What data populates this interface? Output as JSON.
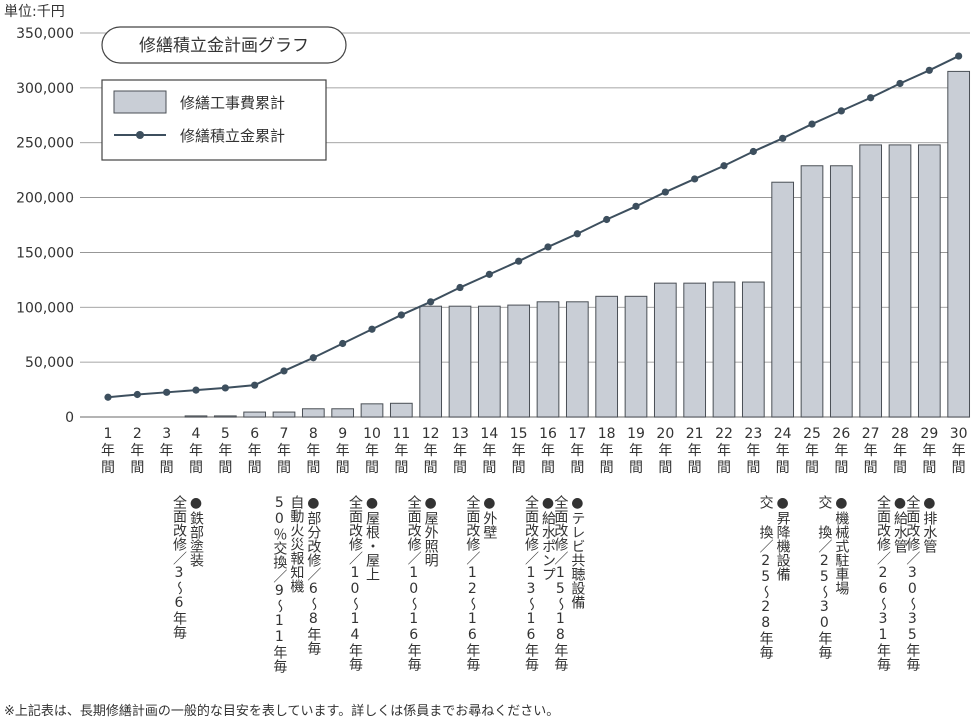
{
  "unit_label": "単位:千円",
  "footnote": "※上記表は、長期修繕計画の一般的な目安を表しています。詳しくは係員までお尋ねください。",
  "colors": {
    "bar_fill": "#c9ced6",
    "bar_stroke": "#4a4f55",
    "line": "#3d4f5e",
    "axis": "#555555",
    "grid": "#888888"
  },
  "chart_data": {
    "type": "bar",
    "title": "修繕積立金計画グラフ",
    "xlabel": "",
    "ylabel": "",
    "ylim": [
      0,
      350000
    ],
    "yticks": [
      "0",
      "50,000",
      "100,000",
      "150,000",
      "200,000",
      "250,000",
      "300,000",
      "350,000"
    ],
    "grid": true,
    "legend_position": "top-left",
    "categories": [
      "1年間",
      "2年間",
      "3年間",
      "4年間",
      "5年間",
      "6年間",
      "7年間",
      "8年間",
      "9年間",
      "10年間",
      "11年間",
      "12年間",
      "13年間",
      "14年間",
      "15年間",
      "16年間",
      "17年間",
      "18年間",
      "19年間",
      "20年間",
      "21年間",
      "22年間",
      "23年間",
      "24年間",
      "25年間",
      "26年間",
      "27年間",
      "28年間",
      "29年間",
      "30年間"
    ],
    "series": [
      {
        "name": "修繕工事費累計",
        "kind": "bar",
        "values": [
          0,
          0,
          0,
          1000,
          1000,
          4500,
          4500,
          7500,
          7500,
          12000,
          12500,
          101000,
          101000,
          101000,
          102000,
          105000,
          105000,
          110000,
          110000,
          122000,
          122000,
          123000,
          123000,
          214000,
          229000,
          229000,
          248000,
          248000,
          248000,
          315000
        ]
      },
      {
        "name": "修繕積立金累計",
        "kind": "line",
        "values": [
          18000,
          20500,
          22500,
          24500,
          26500,
          29000,
          42000,
          54000,
          67000,
          80000,
          93000,
          105000,
          118000,
          130000,
          142000,
          155000,
          167000,
          180000,
          192000,
          205000,
          217000,
          229000,
          242000,
          254000,
          267000,
          279000,
          291000,
          304000,
          316000,
          329000
        ]
      }
    ],
    "annotations": [
      {
        "year": 4,
        "lines": [
          "●鉄部塗装",
          "全面改修／3〜6年毎"
        ]
      },
      {
        "year": 8,
        "lines": [
          "●部分改修／6〜8年毎",
          "自動火災報知機",
          "50％交換／9〜11年毎"
        ]
      },
      {
        "year": 10,
        "lines": [
          "●屋根・屋上",
          "全面改修／10〜14年毎"
        ]
      },
      {
        "year": 12,
        "lines": [
          "●屋外照明",
          "全面改修／10〜16年毎"
        ]
      },
      {
        "year": 14,
        "lines": [
          "●外壁",
          "全面改修／12〜16年毎"
        ]
      },
      {
        "year": 16,
        "lines": [
          "●給水ポンプ",
          "全面改修／13〜16年毎"
        ]
      },
      {
        "year": 17,
        "lines": [
          "●テレビ共聴設備",
          "全面改修／15〜18年毎"
        ]
      },
      {
        "year": 24,
        "lines": [
          "●昇降機設備",
          "交 換／25〜28年毎"
        ]
      },
      {
        "year": 26,
        "lines": [
          "●機械式駐車場",
          "交 換／25〜30年毎"
        ]
      },
      {
        "year": 28,
        "lines": [
          "●給水管",
          "全面改修／26〜31年毎"
        ]
      },
      {
        "year": 29,
        "lines": [
          "●排水管",
          "全面改修／30〜35年毎"
        ]
      }
    ]
  }
}
